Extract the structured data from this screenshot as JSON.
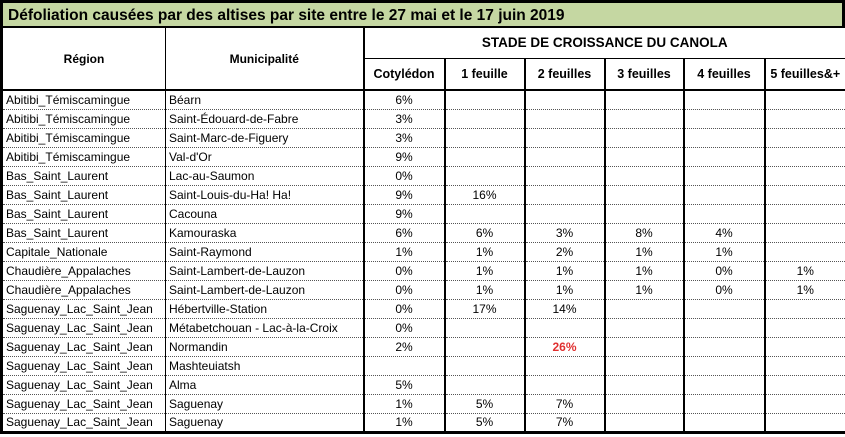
{
  "title": "Défoliation causées par des altises par site entre le 27 mai et le 17 juin 2019",
  "colors": {
    "title_background": "#c5d7a2",
    "alert_value_red": "#e03030"
  },
  "table": {
    "col_region": "Région",
    "col_municipalite": "Municipalité",
    "group_header": "STADE DE CROISSANCE DU CANOLA",
    "stage_columns": [
      "Cotylédon",
      "1 feuille",
      "2 feuilles",
      "3 feuilles",
      "4 feuilles",
      "5 feuilles&+"
    ],
    "highlight": {
      "row": 13,
      "col": 2
    },
    "rows": [
      {
        "region": "Abitibi_Témiscamingue",
        "municipality": "Béarn",
        "values": [
          "6%",
          "",
          "",
          "",
          "",
          ""
        ]
      },
      {
        "region": "Abitibi_Témiscamingue",
        "municipality": "Saint-Édouard-de-Fabre",
        "values": [
          "3%",
          "",
          "",
          "",
          "",
          ""
        ]
      },
      {
        "region": "Abitibi_Témiscamingue",
        "municipality": "Saint-Marc-de-Figuery",
        "values": [
          "3%",
          "",
          "",
          "",
          "",
          ""
        ]
      },
      {
        "region": "Abitibi_Témiscamingue",
        "municipality": "Val-d'Or",
        "values": [
          "9%",
          "",
          "",
          "",
          "",
          ""
        ]
      },
      {
        "region": "Bas_Saint_Laurent",
        "municipality": "Lac-au-Saumon",
        "values": [
          "0%",
          "",
          "",
          "",
          "",
          ""
        ]
      },
      {
        "region": "Bas_Saint_Laurent",
        "municipality": "Saint-Louis-du-Ha! Ha!",
        "values": [
          "9%",
          "16%",
          "",
          "",
          "",
          ""
        ]
      },
      {
        "region": "Bas_Saint_Laurent",
        "municipality": "Cacouna",
        "values": [
          "9%",
          "",
          "",
          "",
          "",
          ""
        ]
      },
      {
        "region": "Bas_Saint_Laurent",
        "municipality": "Kamouraska",
        "values": [
          "6%",
          "6%",
          "3%",
          "8%",
          "4%",
          ""
        ]
      },
      {
        "region": "Capitale_Nationale",
        "municipality": "Saint-Raymond",
        "values": [
          "1%",
          "1%",
          "2%",
          "1%",
          "1%",
          ""
        ]
      },
      {
        "region": "Chaudière_Appalaches",
        "municipality": "Saint-Lambert-de-Lauzon",
        "values": [
          "0%",
          "1%",
          "1%",
          "1%",
          "0%",
          "1%"
        ]
      },
      {
        "region": "Chaudière_Appalaches",
        "municipality": "Saint-Lambert-de-Lauzon",
        "values": [
          "0%",
          "1%",
          "1%",
          "1%",
          "0%",
          "1%"
        ]
      },
      {
        "region": "Saguenay_Lac_Saint_Jean",
        "municipality": "Hébertville-Station",
        "values": [
          "0%",
          "17%",
          "14%",
          "",
          "",
          ""
        ]
      },
      {
        "region": "Saguenay_Lac_Saint_Jean",
        "municipality": "Métabetchouan - Lac-à-la-Croix",
        "values": [
          "0%",
          "",
          "",
          "",
          "",
          ""
        ]
      },
      {
        "region": "Saguenay_Lac_Saint_Jean",
        "municipality": "Normandin",
        "values": [
          "2%",
          "",
          "26%",
          "",
          "",
          ""
        ]
      },
      {
        "region": "Saguenay_Lac_Saint_Jean",
        "municipality": "Mashteuiatsh",
        "values": [
          "",
          "",
          "",
          "",
          "",
          ""
        ]
      },
      {
        "region": "Saguenay_Lac_Saint_Jean",
        "municipality": "Alma",
        "values": [
          "5%",
          "",
          "",
          "",
          "",
          ""
        ]
      },
      {
        "region": "Saguenay_Lac_Saint_Jean",
        "municipality": "Saguenay",
        "values": [
          "1%",
          "5%",
          "7%",
          "",
          "",
          ""
        ]
      },
      {
        "region": "Saguenay_Lac_Saint_Jean",
        "municipality": "Saguenay",
        "values": [
          "1%",
          "5%",
          "7%",
          "",
          "",
          ""
        ]
      }
    ]
  }
}
